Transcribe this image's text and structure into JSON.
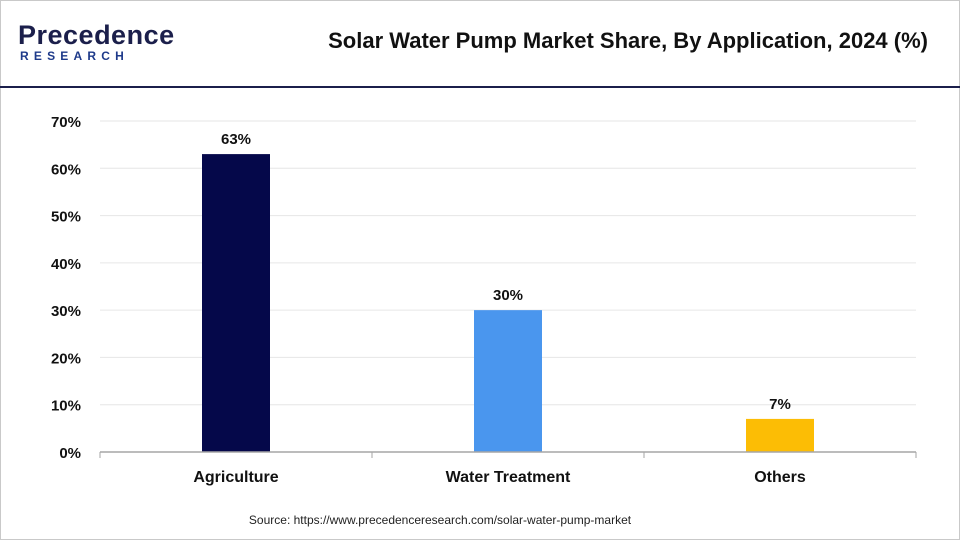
{
  "brand": {
    "name": "Precedence",
    "sub": "RESEARCH"
  },
  "title": "Solar Water Pump Market Share, By Application, 2024 (%)",
  "source": "Source: https://www.precedenceresearch.com/solar-water-pump-market",
  "chart_data": {
    "type": "bar",
    "title": "Solar Water Pump Market Share, By Application, 2024 (%)",
    "xlabel": "",
    "ylabel": "",
    "categories": [
      "Agriculture",
      "Water Treatment",
      "Others"
    ],
    "values": [
      63,
      30,
      7
    ],
    "data_labels": [
      "63%",
      "30%",
      "7%"
    ],
    "colors": [
      "#05084a",
      "#4a96ee",
      "#fcbd05"
    ],
    "yticks": [
      "0%",
      "10%",
      "20%",
      "30%",
      "40%",
      "50%",
      "60%",
      "70%"
    ],
    "ylim": [
      0,
      70
    ],
    "grid": true,
    "legend": "none"
  }
}
